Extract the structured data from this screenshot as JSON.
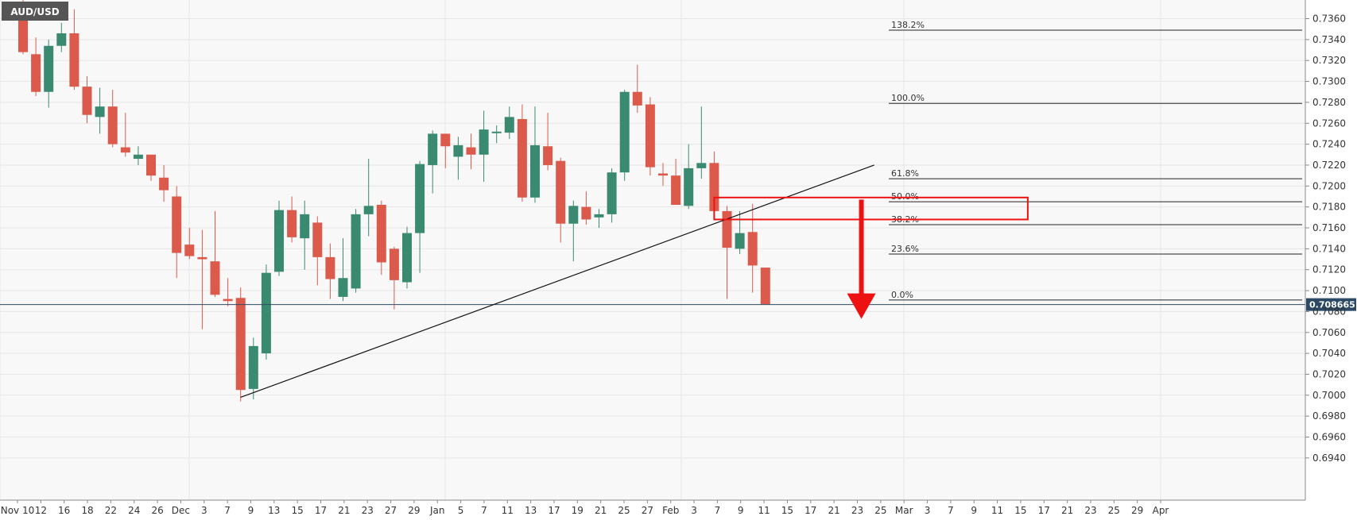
{
  "symbol": "AUD/USD",
  "colors": {
    "bull": "#3a8a72",
    "bear": "#dc5a4c",
    "grid": "#e6e6e6",
    "axis": "#888888",
    "current_line": "#2c4a66",
    "price_tag_bg": "#2c4a66",
    "zone_stroke": "#ee1111",
    "arrow": "#ee1111",
    "trendline": "#111111",
    "symbol_bg": "#555555"
  },
  "chart_data": {
    "type": "candlestick",
    "title": "AUD/USD",
    "ylim": [
      0.6935,
      0.737
    ],
    "y_ticks": [
      "0.7360",
      "0.7340",
      "0.7320",
      "0.7300",
      "0.7280",
      "0.7260",
      "0.7240",
      "0.7220",
      "0.7200",
      "0.7180",
      "0.7160",
      "0.7140",
      "0.7120",
      "0.7100",
      "0.7080",
      "0.7060",
      "0.7040",
      "0.7020",
      "0.7000",
      "0.6980",
      "0.6960",
      "0.6940"
    ],
    "x_ticks": [
      "Nov 10",
      "12",
      "16",
      "18",
      "22",
      "24",
      "26",
      "Dec",
      "3",
      "7",
      "9",
      "13",
      "15",
      "17",
      "21",
      "23",
      "27",
      "29",
      "Jan",
      "5",
      "7",
      "11",
      "13",
      "17",
      "19",
      "21",
      "25",
      "27",
      "Feb",
      "3",
      "7",
      "9",
      "11",
      "15",
      "17",
      "21",
      "23",
      "25",
      "Mar",
      "3",
      "7",
      "9",
      "11",
      "15",
      "17",
      "21",
      "23",
      "25",
      "29",
      "Apr"
    ],
    "current_price": 0.708665,
    "current_price_label": "0.708665",
    "candles": [
      {
        "o": 0.7375,
        "h": 0.738,
        "l": 0.7326,
        "c": 0.7328
      },
      {
        "o": 0.7326,
        "h": 0.7342,
        "l": 0.7286,
        "c": 0.729
      },
      {
        "o": 0.729,
        "h": 0.734,
        "l": 0.7275,
        "c": 0.7334
      },
      {
        "o": 0.7334,
        "h": 0.7356,
        "l": 0.7328,
        "c": 0.7346
      },
      {
        "o": 0.7346,
        "h": 0.7369,
        "l": 0.7292,
        "c": 0.7295
      },
      {
        "o": 0.7295,
        "h": 0.7305,
        "l": 0.726,
        "c": 0.7268
      },
      {
        "o": 0.7266,
        "h": 0.7294,
        "l": 0.725,
        "c": 0.7276
      },
      {
        "o": 0.7276,
        "h": 0.7292,
        "l": 0.7237,
        "c": 0.724
      },
      {
        "o": 0.7237,
        "h": 0.727,
        "l": 0.7228,
        "c": 0.7232
      },
      {
        "o": 0.7226,
        "h": 0.7238,
        "l": 0.722,
        "c": 0.723
      },
      {
        "o": 0.723,
        "h": 0.723,
        "l": 0.7205,
        "c": 0.721
      },
      {
        "o": 0.7208,
        "h": 0.722,
        "l": 0.7185,
        "c": 0.7196
      },
      {
        "o": 0.719,
        "h": 0.72,
        "l": 0.7112,
        "c": 0.7136
      },
      {
        "o": 0.7144,
        "h": 0.716,
        "l": 0.713,
        "c": 0.7133
      },
      {
        "o": 0.7132,
        "h": 0.7158,
        "l": 0.7063,
        "c": 0.713
      },
      {
        "o": 0.7128,
        "h": 0.7176,
        "l": 0.7094,
        "c": 0.7096
      },
      {
        "o": 0.7092,
        "h": 0.7112,
        "l": 0.7085,
        "c": 0.709
      },
      {
        "o": 0.7093,
        "h": 0.7103,
        "l": 0.6994,
        "c": 0.7005
      },
      {
        "o": 0.7006,
        "h": 0.7055,
        "l": 0.6996,
        "c": 0.7047
      },
      {
        "o": 0.704,
        "h": 0.7125,
        "l": 0.7034,
        "c": 0.7117
      },
      {
        "o": 0.7118,
        "h": 0.7186,
        "l": 0.7114,
        "c": 0.7177
      },
      {
        "o": 0.7177,
        "h": 0.719,
        "l": 0.7146,
        "c": 0.7151
      },
      {
        "o": 0.715,
        "h": 0.7186,
        "l": 0.712,
        "c": 0.7173
      },
      {
        "o": 0.7165,
        "h": 0.7171,
        "l": 0.7105,
        "c": 0.7132
      },
      {
        "o": 0.7132,
        "h": 0.7145,
        "l": 0.7092,
        "c": 0.7111
      },
      {
        "o": 0.7094,
        "h": 0.715,
        "l": 0.709,
        "c": 0.7112
      },
      {
        "o": 0.7102,
        "h": 0.7178,
        "l": 0.7098,
        "c": 0.7173
      },
      {
        "o": 0.7173,
        "h": 0.7226,
        "l": 0.7152,
        "c": 0.7181
      },
      {
        "o": 0.7182,
        "h": 0.7186,
        "l": 0.7115,
        "c": 0.7127
      },
      {
        "o": 0.714,
        "h": 0.7142,
        "l": 0.7082,
        "c": 0.711
      },
      {
        "o": 0.7108,
        "h": 0.7161,
        "l": 0.7102,
        "c": 0.7155
      },
      {
        "o": 0.7155,
        "h": 0.7224,
        "l": 0.7117,
        "c": 0.7221
      },
      {
        "o": 0.722,
        "h": 0.7253,
        "l": 0.7193,
        "c": 0.725
      },
      {
        "o": 0.725,
        "h": 0.725,
        "l": 0.7217,
        "c": 0.7238
      },
      {
        "o": 0.7228,
        "h": 0.7247,
        "l": 0.7206,
        "c": 0.7239
      },
      {
        "o": 0.7237,
        "h": 0.725,
        "l": 0.7216,
        "c": 0.723
      },
      {
        "o": 0.723,
        "h": 0.7272,
        "l": 0.7204,
        "c": 0.7254
      },
      {
        "o": 0.7251,
        "h": 0.7258,
        "l": 0.7241,
        "c": 0.7252
      },
      {
        "o": 0.7251,
        "h": 0.7276,
        "l": 0.7245,
        "c": 0.7266
      },
      {
        "o": 0.7264,
        "h": 0.7278,
        "l": 0.7185,
        "c": 0.7189
      },
      {
        "o": 0.7189,
        "h": 0.7276,
        "l": 0.7184,
        "c": 0.7239
      },
      {
        "o": 0.7238,
        "h": 0.727,
        "l": 0.7215,
        "c": 0.722
      },
      {
        "o": 0.7224,
        "h": 0.7227,
        "l": 0.7146,
        "c": 0.7164
      },
      {
        "o": 0.7164,
        "h": 0.7186,
        "l": 0.7128,
        "c": 0.7181
      },
      {
        "o": 0.718,
        "h": 0.7195,
        "l": 0.7163,
        "c": 0.7168
      },
      {
        "o": 0.717,
        "h": 0.7178,
        "l": 0.716,
        "c": 0.7173
      },
      {
        "o": 0.7173,
        "h": 0.7217,
        "l": 0.7165,
        "c": 0.7213
      },
      {
        "o": 0.7213,
        "h": 0.7292,
        "l": 0.7205,
        "c": 0.729
      },
      {
        "o": 0.729,
        "h": 0.7316,
        "l": 0.727,
        "c": 0.7277
      },
      {
        "o": 0.7278,
        "h": 0.7285,
        "l": 0.721,
        "c": 0.7218
      },
      {
        "o": 0.7212,
        "h": 0.7222,
        "l": 0.72,
        "c": 0.721
      },
      {
        "o": 0.721,
        "h": 0.7226,
        "l": 0.7185,
        "c": 0.7182
      },
      {
        "o": 0.7181,
        "h": 0.724,
        "l": 0.7178,
        "c": 0.7217
      },
      {
        "o": 0.7217,
        "h": 0.7276,
        "l": 0.7207,
        "c": 0.7222
      },
      {
        "o": 0.7222,
        "h": 0.7233,
        "l": 0.7171,
        "c": 0.7176
      },
      {
        "o": 0.7176,
        "h": 0.7181,
        "l": 0.7092,
        "c": 0.7141
      },
      {
        "o": 0.714,
        "h": 0.7176,
        "l": 0.7135,
        "c": 0.7155
      },
      {
        "o": 0.7156,
        "h": 0.7183,
        "l": 0.7098,
        "c": 0.7124
      },
      {
        "o": 0.7122,
        "h": 0.7122,
        "l": 0.7087,
        "c": 0.7087
      }
    ],
    "fib_levels": [
      {
        "label": "138.2%",
        "value": 0.7349
      },
      {
        "label": "100.0%",
        "value": 0.7279
      },
      {
        "label": "61.8%",
        "value": 0.7207
      },
      {
        "label": "50.0%",
        "value": 0.7185
      },
      {
        "label": "38.2%",
        "value": 0.7163
      },
      {
        "label": "23.6%",
        "value": 0.7135
      },
      {
        "label": "0.0%",
        "value": 0.7091
      }
    ],
    "trendline": {
      "from_candle": 17,
      "from_value": 0.6998,
      "to_candle": 66.5,
      "to_value": 0.722
    },
    "zone": {
      "from_candle": 54,
      "to_candle": 78.5,
      "top": 0.7189,
      "bottom": 0.7168
    },
    "arrow": {
      "at_candle": 65.5,
      "from_value": 0.7187,
      "to_value": 0.7073
    }
  }
}
